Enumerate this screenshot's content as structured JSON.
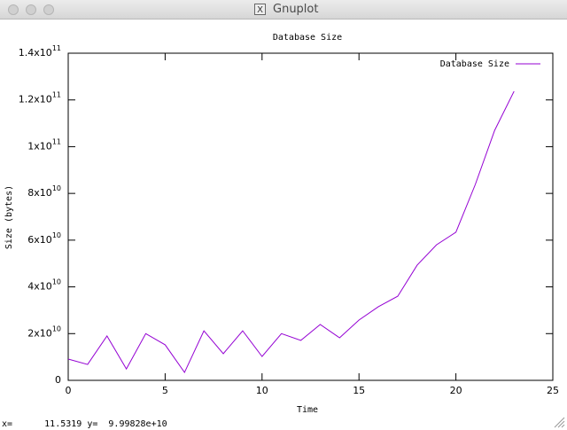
{
  "window": {
    "title": "Gnuplot",
    "status": "x=      11.5319 y=  9.99828e+10"
  },
  "chart_data": {
    "type": "line",
    "title": "Database Size",
    "x_label": "Time",
    "y_label": "Size (bytes)",
    "x": [
      0,
      1,
      2,
      3,
      4,
      5,
      6,
      7,
      8,
      9,
      10,
      11,
      12,
      13,
      14,
      15,
      16,
      17,
      18,
      19,
      20,
      21,
      22,
      23
    ],
    "series": [
      {
        "name": "Database Size",
        "color": "#9400d3",
        "values": [
          9100000000,
          6800000000,
          19000000000,
          4900000000,
          20000000000,
          15200000000,
          3400000000,
          21200000000,
          11400000000,
          21200000000,
          10200000000,
          20000000000,
          17100000000,
          23900000000,
          18200000000,
          25800000000,
          31500000000,
          36000000000,
          49300000000,
          58000000000,
          63400000000,
          83800000000,
          107000000000,
          123700000000
        ]
      }
    ],
    "xlim": [
      0,
      25
    ],
    "xticks": [
      0,
      5,
      10,
      15,
      20,
      25
    ],
    "ylim": [
      0,
      140000000000
    ],
    "yticks": [
      0,
      {
        "value": 20000000000,
        "label": "2x10",
        "exponent": "10"
      },
      {
        "value": 40000000000,
        "label": "4x10",
        "exponent": "10"
      },
      {
        "value": 60000000000,
        "label": "6x10",
        "exponent": "10"
      },
      {
        "value": 80000000000,
        "label": "8x10",
        "exponent": "10"
      },
      {
        "value": 100000000000,
        "label": "1x10",
        "exponent": "11"
      },
      {
        "value": 120000000000,
        "label": "1.2x10",
        "exponent": "11"
      },
      {
        "value": 140000000000,
        "label": "1.4x10",
        "exponent": "11"
      }
    ],
    "legend": "top-right"
  }
}
